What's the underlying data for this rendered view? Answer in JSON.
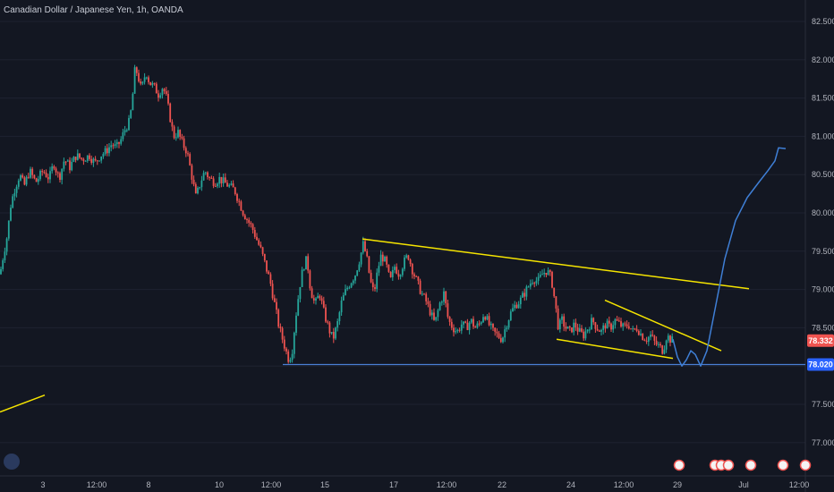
{
  "header": {
    "title": "Canadian Dollar / Japanese Yen, 1h, OANDA"
  },
  "colors": {
    "background": "#131722",
    "bull": "#26a69a",
    "bear": "#ef5350",
    "support": "#4a7fd4",
    "trendline": "#f5e400",
    "projection": "#3f7fd6",
    "last_price_tag": "#ef5350",
    "support_tag": "#2962ff"
  },
  "price_tags": {
    "last_price": "78.332",
    "support_price": "78.020"
  },
  "chart_data": {
    "type": "candlestick",
    "ylim": [
      76.8,
      82.7
    ],
    "y_ticks": [
      "82.500",
      "82.000",
      "81.500",
      "81.000",
      "80.500",
      "80.000",
      "79.500",
      "79.000",
      "78.500",
      "78.000",
      "77.500",
      "77.000"
    ],
    "x_ticks": [
      "3",
      "12:00",
      "8",
      "10",
      "12:00",
      "15",
      "17",
      "12:00",
      "22",
      "24",
      "12:00",
      "29",
      "Jul",
      "12:00"
    ],
    "close_path": [
      {
        "t": 0,
        "p": 79.2
      },
      {
        "t": 3,
        "p": 79.4
      },
      {
        "t": 8,
        "p": 79.7
      },
      {
        "t": 12,
        "p": 80.1
      },
      {
        "t": 16,
        "p": 80.3
      },
      {
        "t": 22,
        "p": 80.5
      },
      {
        "t": 27,
        "p": 80.35
      },
      {
        "t": 33,
        "p": 80.55
      },
      {
        "t": 40,
        "p": 80.4
      },
      {
        "t": 48,
        "p": 80.55
      },
      {
        "t": 55,
        "p": 80.45
      },
      {
        "t": 60,
        "p": 80.65
      },
      {
        "t": 66,
        "p": 80.45
      },
      {
        "t": 72,
        "p": 80.7
      },
      {
        "t": 78,
        "p": 80.6
      },
      {
        "t": 85,
        "p": 80.75
      },
      {
        "t": 92,
        "p": 80.7
      },
      {
        "t": 100,
        "p": 80.75
      },
      {
        "t": 106,
        "p": 80.65
      },
      {
        "t": 112,
        "p": 80.75
      },
      {
        "t": 118,
        "p": 80.8
      },
      {
        "t": 125,
        "p": 80.9
      },
      {
        "t": 130,
        "p": 80.85
      },
      {
        "t": 135,
        "p": 80.95
      },
      {
        "t": 140,
        "p": 81.1
      },
      {
        "t": 145,
        "p": 81.2
      },
      {
        "t": 148,
        "p": 81.5
      },
      {
        "t": 151,
        "p": 81.9
      },
      {
        "t": 154,
        "p": 81.8
      },
      {
        "t": 158,
        "p": 81.6
      },
      {
        "t": 163,
        "p": 81.85
      },
      {
        "t": 167,
        "p": 81.7
      },
      {
        "t": 172,
        "p": 81.65
      },
      {
        "t": 177,
        "p": 81.55
      },
      {
        "t": 182,
        "p": 81.65
      },
      {
        "t": 186,
        "p": 81.5
      },
      {
        "t": 190,
        "p": 81.25
      },
      {
        "t": 194,
        "p": 81.0
      },
      {
        "t": 199,
        "p": 81.05
      },
      {
        "t": 204,
        "p": 80.9
      },
      {
        "t": 209,
        "p": 80.8
      },
      {
        "t": 214,
        "p": 80.5
      },
      {
        "t": 219,
        "p": 80.2
      },
      {
        "t": 224,
        "p": 80.4
      },
      {
        "t": 229,
        "p": 80.55
      },
      {
        "t": 234,
        "p": 80.45
      },
      {
        "t": 240,
        "p": 80.4
      },
      {
        "t": 245,
        "p": 80.45
      },
      {
        "t": 250,
        "p": 80.4
      },
      {
        "t": 256,
        "p": 80.35
      },
      {
        "t": 262,
        "p": 80.3
      },
      {
        "t": 267,
        "p": 80.15
      },
      {
        "t": 272,
        "p": 80.0
      },
      {
        "t": 277,
        "p": 79.9
      },
      {
        "t": 282,
        "p": 79.8
      },
      {
        "t": 287,
        "p": 79.65
      },
      {
        "t": 292,
        "p": 79.5
      },
      {
        "t": 297,
        "p": 79.3
      },
      {
        "t": 302,
        "p": 79.1
      },
      {
        "t": 307,
        "p": 78.8
      },
      {
        "t": 312,
        "p": 78.5
      },
      {
        "t": 317,
        "p": 78.3
      },
      {
        "t": 322,
        "p": 78.1
      },
      {
        "t": 326,
        "p": 78.15
      },
      {
        "t": 330,
        "p": 78.6
      },
      {
        "t": 335,
        "p": 79.05
      },
      {
        "t": 339,
        "p": 79.3
      },
      {
        "t": 343,
        "p": 79.4
      },
      {
        "t": 347,
        "p": 79.0
      },
      {
        "t": 352,
        "p": 78.8
      },
      {
        "t": 357,
        "p": 78.95
      },
      {
        "t": 362,
        "p": 78.7
      },
      {
        "t": 367,
        "p": 78.5
      },
      {
        "t": 372,
        "p": 78.35
      },
      {
        "t": 377,
        "p": 78.55
      },
      {
        "t": 382,
        "p": 78.85
      },
      {
        "t": 387,
        "p": 79.0
      },
      {
        "t": 392,
        "p": 79.1
      },
      {
        "t": 397,
        "p": 79.2
      },
      {
        "t": 402,
        "p": 79.4
      },
      {
        "t": 406,
        "p": 79.6
      },
      {
        "t": 410,
        "p": 79.4
      },
      {
        "t": 414,
        "p": 79.1
      },
      {
        "t": 418,
        "p": 78.95
      },
      {
        "t": 422,
        "p": 79.25
      },
      {
        "t": 426,
        "p": 79.45
      },
      {
        "t": 431,
        "p": 79.35
      },
      {
        "t": 436,
        "p": 79.1
      },
      {
        "t": 441,
        "p": 79.3
      },
      {
        "t": 446,
        "p": 79.2
      },
      {
        "t": 451,
        "p": 79.35
      },
      {
        "t": 456,
        "p": 79.45
      },
      {
        "t": 461,
        "p": 79.25
      },
      {
        "t": 466,
        "p": 79.1
      },
      {
        "t": 471,
        "p": 78.95
      },
      {
        "t": 476,
        "p": 78.85
      },
      {
        "t": 481,
        "p": 78.7
      },
      {
        "t": 486,
        "p": 78.55
      },
      {
        "t": 491,
        "p": 78.8
      },
      {
        "t": 496,
        "p": 78.95
      },
      {
        "t": 501,
        "p": 78.6
      },
      {
        "t": 506,
        "p": 78.5
      },
      {
        "t": 511,
        "p": 78.45
      },
      {
        "t": 516,
        "p": 78.55
      },
      {
        "t": 521,
        "p": 78.5
      },
      {
        "t": 526,
        "p": 78.6
      },
      {
        "t": 531,
        "p": 78.5
      },
      {
        "t": 536,
        "p": 78.55
      },
      {
        "t": 541,
        "p": 78.7
      },
      {
        "t": 546,
        "p": 78.55
      },
      {
        "t": 551,
        "p": 78.45
      },
      {
        "t": 556,
        "p": 78.4
      },
      {
        "t": 561,
        "p": 78.35
      },
      {
        "t": 566,
        "p": 78.55
      },
      {
        "t": 571,
        "p": 78.7
      },
      {
        "t": 576,
        "p": 78.8
      },
      {
        "t": 581,
        "p": 78.85
      },
      {
        "t": 586,
        "p": 78.95
      },
      {
        "t": 591,
        "p": 79.05
      },
      {
        "t": 596,
        "p": 79.15
      },
      {
        "t": 601,
        "p": 79.1
      },
      {
        "t": 606,
        "p": 79.2
      },
      {
        "t": 611,
        "p": 79.25
      },
      {
        "t": 616,
        "p": 79.15
      },
      {
        "t": 620,
        "p": 78.85
      },
      {
        "t": 624,
        "p": 78.5
      },
      {
        "t": 628,
        "p": 78.6
      },
      {
        "t": 632,
        "p": 78.5
      },
      {
        "t": 637,
        "p": 78.45
      },
      {
        "t": 642,
        "p": 78.55
      },
      {
        "t": 647,
        "p": 78.45
      },
      {
        "t": 652,
        "p": 78.4
      },
      {
        "t": 657,
        "p": 78.5
      },
      {
        "t": 662,
        "p": 78.6
      },
      {
        "t": 667,
        "p": 78.5
      },
      {
        "t": 672,
        "p": 78.45
      },
      {
        "t": 677,
        "p": 78.55
      },
      {
        "t": 682,
        "p": 78.5
      },
      {
        "t": 687,
        "p": 78.6
      },
      {
        "t": 692,
        "p": 78.55
      },
      {
        "t": 697,
        "p": 78.5
      },
      {
        "t": 702,
        "p": 78.55
      },
      {
        "t": 707,
        "p": 78.45
      },
      {
        "t": 712,
        "p": 78.5
      },
      {
        "t": 717,
        "p": 78.4
      },
      {
        "t": 722,
        "p": 78.35
      },
      {
        "t": 727,
        "p": 78.4
      },
      {
        "t": 732,
        "p": 78.3
      },
      {
        "t": 737,
        "p": 78.25
      },
      {
        "t": 741,
        "p": 78.2
      },
      {
        "t": 745,
        "p": 78.4
      },
      {
        "t": 749,
        "p": 78.35
      },
      {
        "t": 752,
        "p": 78.33
      }
    ],
    "drawings": {
      "upper_trendline": [
        {
          "t": 405,
          "p": 79.66
        },
        {
          "t": 837,
          "p": 79.01
        }
      ],
      "channel_lower": [
        {
          "t": 622,
          "p": 78.35
        },
        {
          "t": 752,
          "p": 78.1
        }
      ],
      "channel_upper": [
        {
          "t": 676,
          "p": 78.86
        },
        {
          "t": 806,
          "p": 78.2
        }
      ],
      "left_trendline": [
        {
          "t": 0,
          "p": 77.4
        },
        {
          "t": 50,
          "p": 77.62
        }
      ],
      "support_level": 78.02,
      "support_start": 316,
      "projection": [
        {
          "t": 752,
          "p": 78.35
        },
        {
          "t": 757,
          "p": 78.12
        },
        {
          "t": 762,
          "p": 78.0
        },
        {
          "t": 767,
          "p": 78.08
        },
        {
          "t": 772,
          "p": 78.2
        },
        {
          "t": 777,
          "p": 78.15
        },
        {
          "t": 783,
          "p": 78.0
        },
        {
          "t": 790,
          "p": 78.2
        },
        {
          "t": 800,
          "p": 78.8
        },
        {
          "t": 810,
          "p": 79.4
        },
        {
          "t": 822,
          "p": 79.9
        },
        {
          "t": 835,
          "p": 80.2
        },
        {
          "t": 848,
          "p": 80.4
        },
        {
          "t": 858,
          "p": 80.55
        },
        {
          "t": 866,
          "p": 80.68
        },
        {
          "t": 870,
          "p": 80.85
        },
        {
          "t": 878,
          "p": 80.84
        }
      ]
    }
  }
}
